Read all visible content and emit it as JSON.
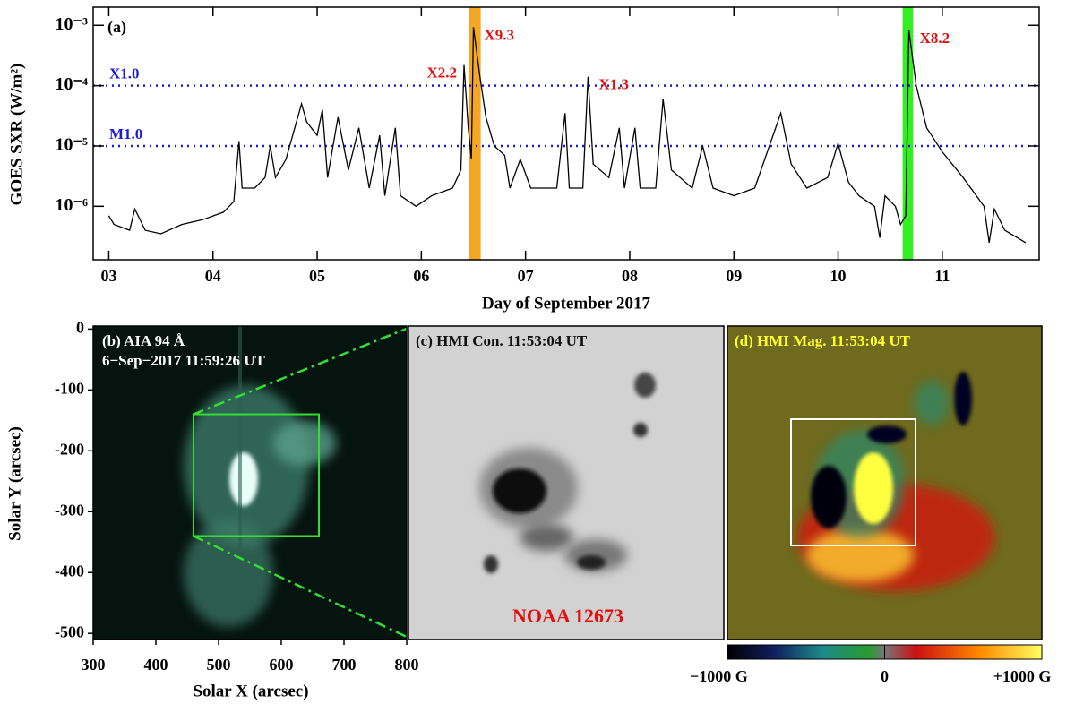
{
  "chart_data": [
    {
      "type": "line",
      "panel": "(a)",
      "ylabel": "GOES SXR (W/m²)",
      "xlabel": "Day of September 2017",
      "log_y": true,
      "color": "#000000",
      "xlim": [
        2.85,
        11.93
      ],
      "ylim": [
        1.3e-07,
        0.002
      ],
      "xticks": [
        {
          "value": 3,
          "label": "03"
        },
        {
          "value": 4,
          "label": "04"
        },
        {
          "value": 5,
          "label": "05"
        },
        {
          "value": 6,
          "label": "06"
        },
        {
          "value": 7,
          "label": "07"
        },
        {
          "value": 8,
          "label": "08"
        },
        {
          "value": 9,
          "label": "09"
        },
        {
          "value": 10,
          "label": "10"
        },
        {
          "value": 11,
          "label": "11"
        }
      ],
      "yticks": [
        {
          "value": 1e-06,
          "label": "10⁻⁶"
        },
        {
          "value": 1e-05,
          "label": "10⁻⁵"
        },
        {
          "value": 0.0001,
          "label": "10⁻⁴"
        },
        {
          "value": 0.001,
          "label": "10⁻³"
        }
      ],
      "hlines": [
        {
          "label": "X1.0",
          "value": 0.0001,
          "color": "#1a1adb"
        },
        {
          "label": "M1.0",
          "value": 1e-05,
          "color": "#1a1adb"
        }
      ],
      "bands": [
        {
          "x": [
            6.46,
            6.57
          ],
          "color": "#f5a623"
        },
        {
          "x": [
            10.62,
            10.72
          ],
          "color": "#33ee22"
        }
      ],
      "flares": [
        {
          "label": "X2.2",
          "x": 6.41,
          "value": 0.00022
        },
        {
          "label": "X9.3",
          "x": 6.5,
          "value": 0.00093
        },
        {
          "label": "X1.3",
          "x": 7.6,
          "value": 0.00014
        },
        {
          "label": "X8.2",
          "x": 10.68,
          "value": 0.00082
        }
      ],
      "series": [
        {
          "x": [
            3.0,
            3.05,
            3.2,
            3.25,
            3.35,
            3.5,
            3.7,
            3.9,
            4.1,
            4.2,
            4.25,
            4.28,
            4.4,
            4.5,
            4.55,
            4.6,
            4.7,
            4.85,
            4.9,
            5.0,
            5.05,
            5.1,
            5.2,
            5.3,
            5.4,
            5.5,
            5.6,
            5.65,
            5.75,
            5.8,
            5.95,
            6.1,
            6.3,
            6.38,
            6.41,
            6.45,
            6.48,
            6.5,
            6.56,
            6.62,
            6.7,
            6.8,
            6.85,
            6.95,
            7.05,
            7.2,
            7.3,
            7.38,
            7.42,
            7.55,
            7.6,
            7.65,
            7.8,
            7.9,
            7.95,
            8.05,
            8.1,
            8.25,
            8.32,
            8.4,
            8.6,
            8.7,
            8.8,
            9.0,
            9.2,
            9.45,
            9.55,
            9.7,
            9.9,
            10.0,
            10.1,
            10.2,
            10.35,
            10.4,
            10.45,
            10.55,
            10.6,
            10.65,
            10.68,
            10.75,
            10.85,
            11.0,
            11.2,
            11.4,
            11.45,
            11.5,
            11.6,
            11.8
          ],
          "values": [
            7e-07,
            5e-07,
            4e-07,
            9e-07,
            4e-07,
            3.5e-07,
            5e-07,
            6e-07,
            8e-07,
            1.2e-06,
            1.2e-05,
            2e-06,
            2e-06,
            3e-06,
            1e-05,
            3e-06,
            6e-06,
            5e-05,
            2.5e-05,
            1.5e-05,
            4e-05,
            3e-06,
            3e-05,
            4e-06,
            2e-05,
            2e-06,
            1.5e-05,
            1.5e-06,
            2e-05,
            1.5e-06,
            1e-06,
            1.5e-06,
            2e-06,
            4e-06,
            0.00022,
            2e-05,
            6e-06,
            0.00093,
            0.00015,
            3e-05,
            1e-05,
            7e-06,
            2e-06,
            6e-06,
            2e-06,
            2e-06,
            2e-06,
            3.5e-05,
            2e-06,
            2e-06,
            0.00014,
            5e-06,
            3e-06,
            2e-05,
            2e-06,
            2e-05,
            2e-06,
            2e-06,
            6e-05,
            4e-06,
            2e-06,
            1e-05,
            2e-06,
            1.5e-06,
            2e-06,
            3.5e-05,
            5e-06,
            2e-06,
            3e-06,
            1.1e-05,
            2.5e-06,
            1.5e-06,
            1e-06,
            3e-07,
            1.5e-06,
            1e-06,
            5e-07,
            7e-07,
            0.00082,
            0.0001,
            2e-05,
            8e-06,
            3e-06,
            1e-06,
            2.5e-07,
            9e-07,
            4e-07,
            2.5e-07
          ]
        }
      ]
    },
    {
      "type": "image",
      "title": "(b) AIA 94 Å",
      "subtitle": "6−Sep−2017  11:59:26 UT",
      "xlabel": "Solar X (arcsec)",
      "ylabel": "Solar Y (arcsec)",
      "xlim": [
        300,
        800
      ],
      "ylim": [
        -510,
        5
      ],
      "xticks": [
        300,
        400,
        500,
        600,
        700,
        800
      ],
      "yticks": [
        0,
        -100,
        -200,
        -300,
        -400,
        -500
      ],
      "box": {
        "x": [
          460,
          660
        ],
        "y": [
          -140,
          -340
        ],
        "color": "#33dd33"
      }
    },
    {
      "type": "image",
      "title": "(c) HMI Con.   11:53:04 UT",
      "annotation": "NOAA 12673"
    },
    {
      "type": "image",
      "title": "(d) HMI Mag.   11:53:04 UT",
      "colorbar": {
        "lim": [
          -1000,
          1000
        ],
        "ticks": [
          {
            "value": -1000,
            "label": "−1000 G"
          },
          {
            "value": 0,
            "label": "0"
          },
          {
            "value": 1000,
            "label": "+1000 G"
          }
        ]
      }
    }
  ]
}
